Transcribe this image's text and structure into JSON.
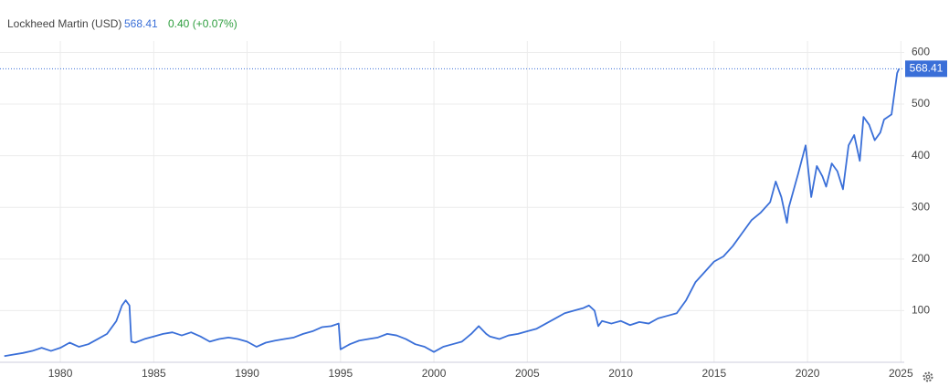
{
  "chart_data": {
    "type": "line",
    "title": "Lockheed Martin (USD)",
    "last_price": "568.41",
    "change": "0.40 (+0.07%)",
    "xlim": [
      1976.77,
      2025.18
    ],
    "xticks": [
      1980,
      1985,
      1990,
      1995,
      2000,
      2005,
      2010,
      2015,
      2020,
      2025
    ],
    "ylim": [
      0,
      622
    ],
    "yticks": [
      100,
      200,
      300,
      400,
      500,
      600
    ],
    "grid": true,
    "series": [
      {
        "name": "Lockheed Martin (USD)",
        "color": "#3a6fd8",
        "x": [
          1977.0,
          1977.5,
          1978,
          1978.5,
          1979,
          1979.5,
          1980,
          1980.5,
          1981,
          1981.5,
          1982,
          1982.5,
          1983,
          1983.3,
          1983.5,
          1983.7,
          1983.8,
          1984,
          1984.5,
          1985,
          1985.5,
          1986,
          1986.5,
          1987,
          1987.5,
          1988,
          1988.5,
          1989,
          1989.5,
          1990,
          1990.5,
          1991,
          1991.5,
          1992,
          1992.5,
          1993,
          1993.5,
          1994,
          1994.5,
          1994.9,
          1995.0,
          1995.5,
          1996,
          1996.5,
          1997,
          1997.5,
          1998,
          1998.5,
          1999,
          1999.5,
          2000,
          2000.5,
          2001,
          2001.5,
          2002,
          2002.4,
          2002.8,
          2003,
          2003.5,
          2004,
          2004.5,
          2005,
          2005.5,
          2006,
          2006.5,
          2007,
          2007.5,
          2008,
          2008.3,
          2008.6,
          2008.8,
          2009,
          2009.5,
          2010,
          2010.5,
          2011,
          2011.5,
          2012,
          2012.5,
          2013,
          2013.5,
          2014,
          2014.5,
          2015,
          2015.5,
          2016,
          2016.5,
          2017,
          2017.5,
          2018,
          2018.3,
          2018.6,
          2018.9,
          2019,
          2019.5,
          2019.9,
          2020.2,
          2020.5,
          2020.8,
          2021.0,
          2021.3,
          2021.6,
          2021.9,
          2022.2,
          2022.5,
          2022.8,
          2023.0,
          2023.3,
          2023.6,
          2023.9,
          2024.1,
          2024.5,
          2024.8,
          2024.9
        ],
        "values": [
          12,
          15,
          18,
          22,
          28,
          22,
          28,
          38,
          30,
          35,
          45,
          55,
          80,
          110,
          120,
          110,
          40,
          38,
          45,
          50,
          55,
          58,
          52,
          58,
          50,
          40,
          45,
          48,
          45,
          40,
          30,
          38,
          42,
          45,
          48,
          55,
          60,
          68,
          70,
          75,
          25,
          35,
          42,
          45,
          48,
          55,
          52,
          45,
          35,
          30,
          20,
          30,
          35,
          40,
          55,
          70,
          55,
          50,
          45,
          52,
          55,
          60,
          65,
          75,
          85,
          95,
          100,
          105,
          110,
          100,
          70,
          80,
          75,
          80,
          72,
          78,
          75,
          85,
          90,
          95,
          120,
          155,
          175,
          195,
          205,
          225,
          250,
          275,
          290,
          310,
          350,
          320,
          270,
          300,
          365,
          420,
          320,
          380,
          360,
          340,
          385,
          370,
          335,
          420,
          440,
          390,
          475,
          460,
          430,
          445,
          470,
          480,
          560,
          568.41
        ]
      }
    ]
  }
}
